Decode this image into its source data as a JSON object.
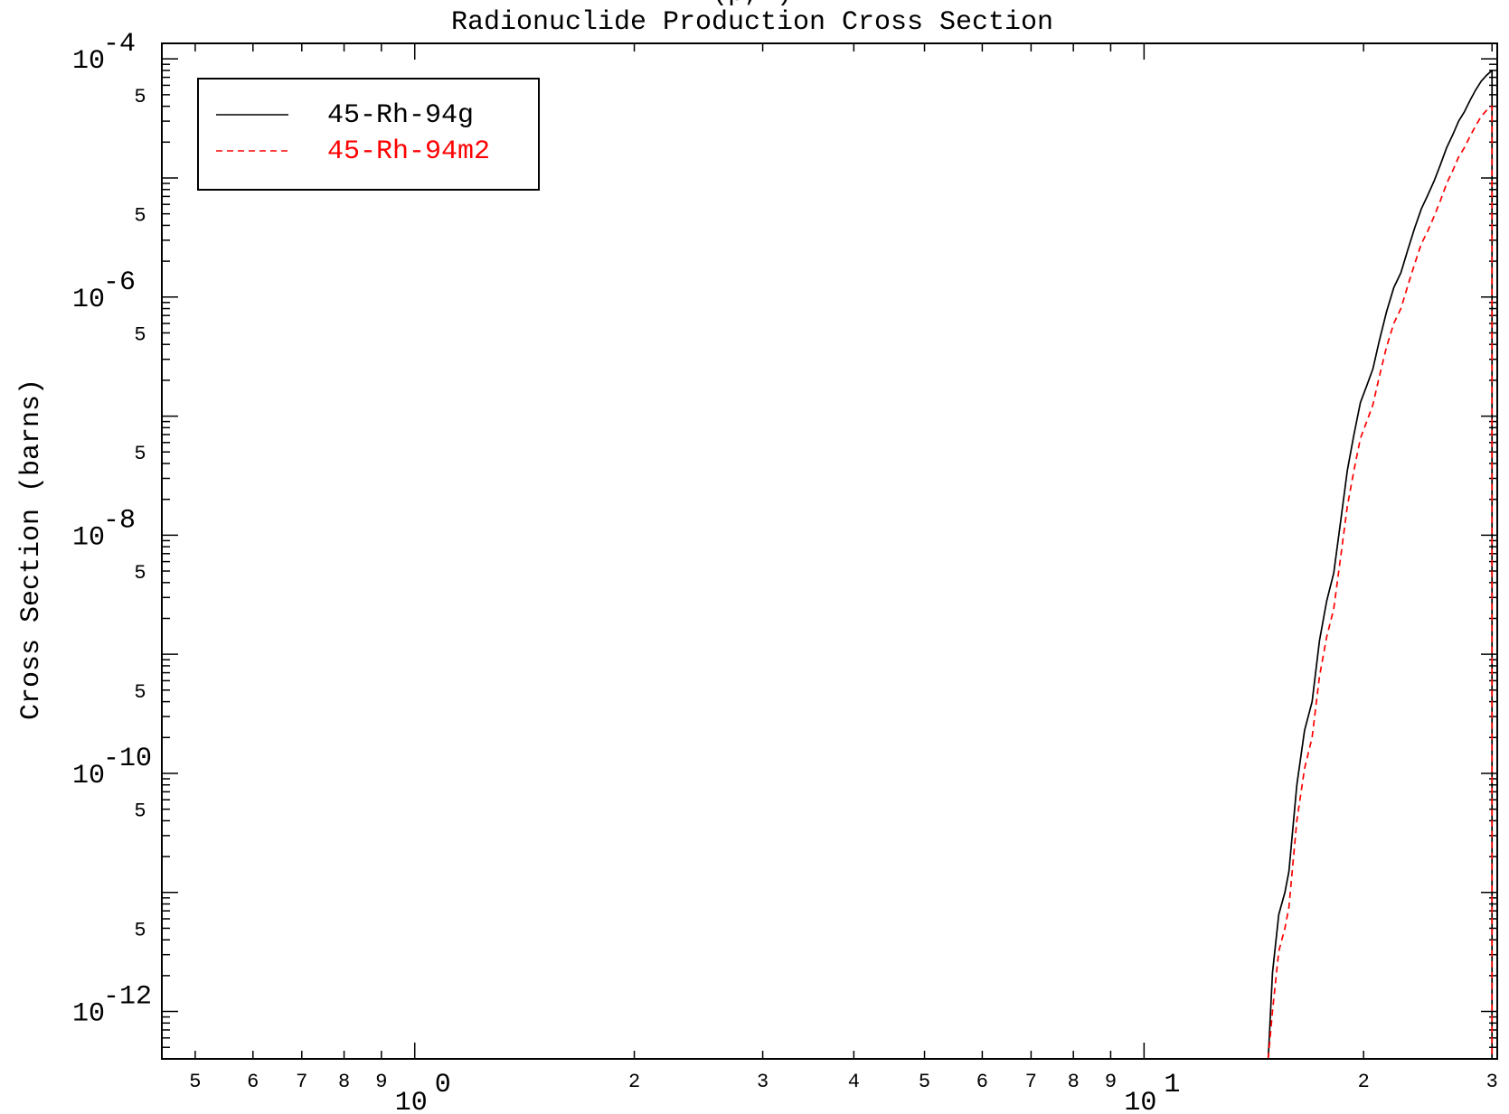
{
  "chart_data": {
    "type": "line",
    "title": "Radionuclide Production Cross Section",
    "title_top_fragment": "(p,x)",
    "xlabel": "",
    "ylabel": "Cross Section (barns)",
    "xscale": "log",
    "yscale": "log",
    "xlim": [
      0.45,
      30.5
    ],
    "ylim": [
      4e-13,
      0.000135
    ],
    "x_major_ticks": [
      {
        "value": 1,
        "base": "10",
        "exp": "0"
      },
      {
        "value": 10,
        "base": "10",
        "exp": "1"
      }
    ],
    "x_minor_labels": [
      {
        "value": 0.5,
        "label": "5"
      },
      {
        "value": 0.6,
        "label": "6"
      },
      {
        "value": 0.7,
        "label": "7"
      },
      {
        "value": 0.8,
        "label": "8"
      },
      {
        "value": 0.9,
        "label": "9"
      },
      {
        "value": 2,
        "label": "2"
      },
      {
        "value": 3,
        "label": "3"
      },
      {
        "value": 4,
        "label": "4"
      },
      {
        "value": 5,
        "label": "5"
      },
      {
        "value": 6,
        "label": "6"
      },
      {
        "value": 7,
        "label": "7"
      },
      {
        "value": 8,
        "label": "8"
      },
      {
        "value": 9,
        "label": "9"
      },
      {
        "value": 20,
        "label": "2"
      },
      {
        "value": 30,
        "label": "3"
      }
    ],
    "y_major_ticks": [
      {
        "value": 0.0001,
        "base": "10",
        "exp": "-4"
      },
      {
        "value": 1e-06,
        "base": "10",
        "exp": "-6"
      },
      {
        "value": 1e-08,
        "base": "10",
        "exp": "-8"
      },
      {
        "value": 1e-10,
        "base": "10",
        "exp": "-10"
      },
      {
        "value": 1e-12,
        "base": "10",
        "exp": "-12"
      }
    ],
    "y_minor_labels": [
      {
        "value": 5e-05,
        "label": "5"
      },
      {
        "value": 5e-06,
        "label": "5"
      },
      {
        "value": 5e-07,
        "label": "5"
      },
      {
        "value": 5e-08,
        "label": "5"
      },
      {
        "value": 5e-09,
        "label": "5"
      },
      {
        "value": 5e-10,
        "label": "5"
      },
      {
        "value": 5e-11,
        "label": "5"
      },
      {
        "value": 5e-12,
        "label": "5"
      }
    ],
    "grid": false,
    "legend_position": "top-left",
    "series": [
      {
        "name": "45-Rh-94g",
        "color": "#000000",
        "style": "solid",
        "x": [
          14.8,
          15.0,
          15.3,
          15.6,
          15.8,
          16.2,
          16.6,
          17.0,
          17.4,
          17.8,
          18.2,
          18.6,
          19.0,
          19.4,
          19.8,
          20.2,
          20.6,
          21.0,
          21.5,
          22.0,
          22.5,
          23.0,
          23.5,
          24.0,
          24.5,
          25.0,
          25.5,
          26.0,
          26.5,
          27.0,
          27.5,
          28.0,
          28.5,
          29.0,
          29.5,
          30.0,
          30.0
        ],
        "y": [
          4e-13,
          2.1e-12,
          6.5e-12,
          1e-11,
          1.5e-11,
          8e-11,
          2.3e-10,
          4e-10,
          1.3e-09,
          2.8e-09,
          4.8e-09,
          1.3e-08,
          3.5e-08,
          7e-08,
          1.3e-07,
          1.8e-07,
          2.5e-07,
          4.2e-07,
          7.5e-07,
          1.2e-06,
          1.6e-06,
          2.5e-06,
          3.8e-06,
          5.5e-06,
          7.2e-06,
          9.5e-06,
          1.3e-05,
          1.8e-05,
          2.3e-05,
          3e-05,
          3.6e-05,
          4.5e-05,
          5.5e-05,
          6.5e-05,
          7.3e-05,
          8e-05,
          4e-13
        ]
      },
      {
        "name": "45-Rh-94m2",
        "color": "#ff0000",
        "style": "dashed",
        "x": [
          14.8,
          15.0,
          15.3,
          15.6,
          15.8,
          16.2,
          16.6,
          17.0,
          17.4,
          17.8,
          18.2,
          18.6,
          19.0,
          19.4,
          19.8,
          20.2,
          20.6,
          21.0,
          21.5,
          22.0,
          22.5,
          23.0,
          23.5,
          24.0,
          24.5,
          25.0,
          25.5,
          26.0,
          26.5,
          27.0,
          27.5,
          28.0,
          28.5,
          29.0,
          29.5,
          30.0,
          30.0
        ],
        "y": [
          4e-13,
          1e-12,
          3.2e-12,
          5e-12,
          7.5e-12,
          4e-11,
          1.1e-10,
          2e-10,
          6.5e-10,
          1.4e-09,
          2.4e-09,
          6.5e-09,
          1.75e-08,
          3.5e-08,
          6.5e-08,
          9e-08,
          1.25e-07,
          2.1e-07,
          3.8e-07,
          6e-07,
          8e-07,
          1.25e-06,
          1.9e-06,
          2.8e-06,
          3.6e-06,
          4.8e-06,
          6.5e-06,
          9e-06,
          1.15e-05,
          1.5e-05,
          1.8e-05,
          2.25e-05,
          2.75e-05,
          3.3e-05,
          3.7e-05,
          4e-05,
          4e-13
        ]
      }
    ]
  }
}
